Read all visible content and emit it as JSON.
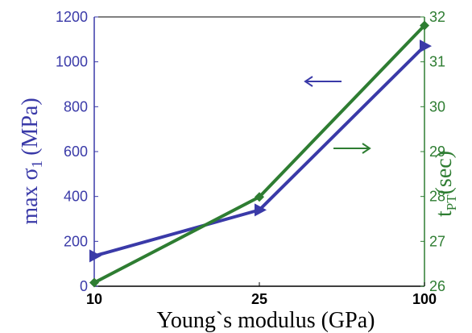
{
  "chart_data": {
    "type": "line",
    "categories": [
      "10",
      "25",
      "100"
    ],
    "xlabel": "Young`s modulus (GPa)",
    "y_left": {
      "label_main": "max σ",
      "label_sub": "1",
      "label_unit": "(MPa)",
      "ylim": [
        0,
        1200
      ],
      "ticks": [
        0,
        200,
        400,
        600,
        800,
        1000,
        1200
      ],
      "color": "#3a3aa8"
    },
    "y_right": {
      "label_main": "t",
      "label_sub": "PT",
      "label_unit": "(sec)",
      "ylim": [
        26,
        32
      ],
      "ticks": [
        26,
        27,
        28,
        29,
        30,
        31,
        32
      ],
      "color": "#2e7d32"
    },
    "series": [
      {
        "values": [
          135,
          340,
          1070
        ],
        "axis": "left",
        "marker": "triangle-right",
        "color": "#3a3aa8"
      },
      {
        "values": [
          26.08,
          27.99,
          31.81
        ],
        "axis": "right",
        "marker": "diamond",
        "color": "#2e7d32"
      }
    ],
    "annotations": [
      {
        "type": "arrow",
        "direction": "left",
        "color": "#3a3aa8",
        "refers_to": "left axis"
      },
      {
        "type": "arrow",
        "direction": "right",
        "color": "#2e7d32",
        "refers_to": "right axis"
      }
    ],
    "grid": false,
    "legend": "none"
  }
}
